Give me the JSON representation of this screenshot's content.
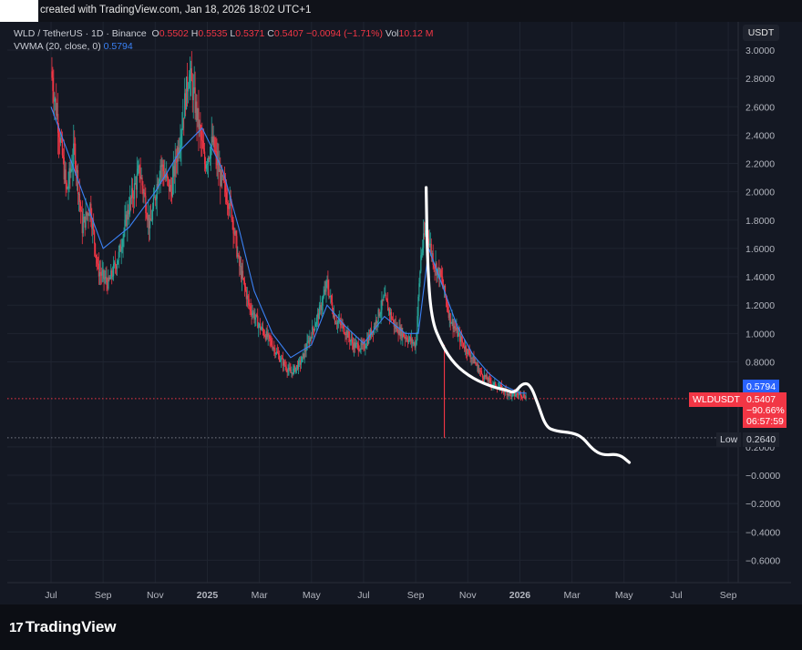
{
  "header": {
    "caption": "created with TradingView.com, Jan 18, 2026 18:02 UTC+1"
  },
  "legend": {
    "symbol": "WLD / TetherUS · 1D · Binance",
    "open_label": "O",
    "open": "0.5502",
    "high_label": "H",
    "high": "0.5535",
    "low_label": "L",
    "low": "0.5371",
    "close_label": "C",
    "close": "0.5407",
    "change": "−0.0094 (−1.71%)",
    "vol_label": "Vol",
    "vol": "10.12 M",
    "indicator": "VWMA (20, close, 0)",
    "indicator_value": "0.5794"
  },
  "currency_button": "USDT",
  "price_tags": {
    "vwma": "0.5794",
    "symbol_tag": "WLDUSDT",
    "last_price": "0.5407",
    "change_pct": "−90.66%",
    "countdown": "06:57:59",
    "low_label": "Low",
    "low_value": "0.2640"
  },
  "brand": "TradingView",
  "colors": {
    "background": "#141823",
    "bull": "#26a69a",
    "bear": "#f23645",
    "vwma": "#3b82f6",
    "projection": "#ffffff",
    "grid": "#1f2430"
  },
  "chart_data": {
    "type": "candlestick",
    "y_axis": {
      "ticks": [
        "3.0000",
        "2.8000",
        "2.6000",
        "2.4000",
        "2.2000",
        "2.0000",
        "1.8000",
        "1.6000",
        "1.4000",
        "1.2000",
        "1.0000",
        "0.8000",
        "0.2000",
        "−0.0000",
        "−0.2000",
        "−0.4000",
        "−0.6000"
      ],
      "tick_values": [
        3.0,
        2.8,
        2.6,
        2.4,
        2.2,
        2.0,
        1.8,
        1.6,
        1.4,
        1.2,
        1.0,
        0.8,
        0.2,
        0.0,
        -0.2,
        -0.4,
        -0.6
      ],
      "range": [
        -0.7,
        3.1
      ]
    },
    "x_axis": {
      "labels": [
        "Jul",
        "Sep",
        "Nov",
        "2025",
        "Mar",
        "May",
        "Jul",
        "Sep",
        "Nov",
        "2026",
        "Mar",
        "May",
        "Jul",
        "Sep"
      ],
      "positions_months": [
        0,
        2,
        4,
        6,
        8,
        10,
        12,
        14,
        16,
        18,
        20,
        22,
        24,
        26
      ]
    },
    "price_path": [
      {
        "m": 0.0,
        "p": 2.85
      },
      {
        "m": 0.3,
        "p": 2.45
      },
      {
        "m": 0.6,
        "p": 2.0
      },
      {
        "m": 0.9,
        "p": 2.3
      },
      {
        "m": 1.2,
        "p": 1.75
      },
      {
        "m": 1.5,
        "p": 1.9
      },
      {
        "m": 1.8,
        "p": 1.45
      },
      {
        "m": 2.2,
        "p": 1.35
      },
      {
        "m": 2.6,
        "p": 1.55
      },
      {
        "m": 3.0,
        "p": 1.9
      },
      {
        "m": 3.4,
        "p": 2.15
      },
      {
        "m": 3.8,
        "p": 1.75
      },
      {
        "m": 4.2,
        "p": 2.2
      },
      {
        "m": 4.6,
        "p": 2.0
      },
      {
        "m": 5.0,
        "p": 2.45
      },
      {
        "m": 5.3,
        "p": 2.85
      },
      {
        "m": 5.6,
        "p": 2.55
      },
      {
        "m": 5.9,
        "p": 2.2
      },
      {
        "m": 6.2,
        "p": 2.35
      },
      {
        "m": 6.5,
        "p": 2.1
      },
      {
        "m": 6.9,
        "p": 1.9
      },
      {
        "m": 7.2,
        "p": 1.5
      },
      {
        "m": 7.6,
        "p": 1.2
      },
      {
        "m": 8.0,
        "p": 1.05
      },
      {
        "m": 8.4,
        "p": 0.95
      },
      {
        "m": 8.8,
        "p": 0.82
      },
      {
        "m": 9.2,
        "p": 0.72
      },
      {
        "m": 9.6,
        "p": 0.8
      },
      {
        "m": 10.0,
        "p": 1.0
      },
      {
        "m": 10.3,
        "p": 1.15
      },
      {
        "m": 10.6,
        "p": 1.35
      },
      {
        "m": 10.9,
        "p": 1.1
      },
      {
        "m": 11.2,
        "p": 1.05
      },
      {
        "m": 11.6,
        "p": 0.92
      },
      {
        "m": 12.0,
        "p": 0.9
      },
      {
        "m": 12.4,
        "p": 1.05
      },
      {
        "m": 12.8,
        "p": 1.25
      },
      {
        "m": 13.2,
        "p": 1.05
      },
      {
        "m": 13.6,
        "p": 0.98
      },
      {
        "m": 14.0,
        "p": 0.92
      },
      {
        "m": 14.2,
        "p": 1.55
      },
      {
        "m": 14.4,
        "p": 1.75
      },
      {
        "m": 14.7,
        "p": 1.5
      },
      {
        "m": 15.0,
        "p": 1.38
      },
      {
        "m": 15.3,
        "p": 1.12
      },
      {
        "m": 15.6,
        "p": 1.0
      },
      {
        "m": 15.9,
        "p": 0.9
      },
      {
        "m": 16.2,
        "p": 0.82
      },
      {
        "m": 16.5,
        "p": 0.72
      },
      {
        "m": 16.9,
        "p": 0.65
      },
      {
        "m": 17.3,
        "p": 0.61
      },
      {
        "m": 17.7,
        "p": 0.56
      },
      {
        "m": 18.0,
        "p": 0.58
      },
      {
        "m": 18.25,
        "p": 0.55
      }
    ],
    "vwma_path": [
      {
        "m": 0.0,
        "p": 2.6
      },
      {
        "m": 1.0,
        "p": 2.1
      },
      {
        "m": 2.0,
        "p": 1.6
      },
      {
        "m": 3.0,
        "p": 1.75
      },
      {
        "m": 4.0,
        "p": 2.0
      },
      {
        "m": 5.0,
        "p": 2.3
      },
      {
        "m": 5.8,
        "p": 2.45
      },
      {
        "m": 6.6,
        "p": 2.15
      },
      {
        "m": 7.2,
        "p": 1.75
      },
      {
        "m": 7.8,
        "p": 1.3
      },
      {
        "m": 8.5,
        "p": 1.0
      },
      {
        "m": 9.2,
        "p": 0.83
      },
      {
        "m": 10.0,
        "p": 0.92
      },
      {
        "m": 10.6,
        "p": 1.2
      },
      {
        "m": 11.3,
        "p": 1.05
      },
      {
        "m": 12.0,
        "p": 0.93
      },
      {
        "m": 12.8,
        "p": 1.12
      },
      {
        "m": 13.6,
        "p": 1.0
      },
      {
        "m": 14.1,
        "p": 1.0
      },
      {
        "m": 14.5,
        "p": 1.6
      },
      {
        "m": 15.0,
        "p": 1.35
      },
      {
        "m": 15.6,
        "p": 1.05
      },
      {
        "m": 16.2,
        "p": 0.85
      },
      {
        "m": 16.8,
        "p": 0.72
      },
      {
        "m": 17.4,
        "p": 0.63
      },
      {
        "m": 18.0,
        "p": 0.58
      },
      {
        "m": 18.25,
        "p": 0.5794
      }
    ],
    "projection_path": [
      {
        "m": 14.4,
        "p": 2.03
      },
      {
        "m": 14.45,
        "p": 1.5
      },
      {
        "m": 14.6,
        "p": 1.1
      },
      {
        "m": 15.0,
        "p": 0.92
      },
      {
        "m": 15.5,
        "p": 0.78
      },
      {
        "m": 16.2,
        "p": 0.68
      },
      {
        "m": 17.0,
        "p": 0.62
      },
      {
        "m": 17.5,
        "p": 0.6
      },
      {
        "m": 17.8,
        "p": 0.58
      },
      {
        "m": 18.1,
        "p": 0.65
      },
      {
        "m": 18.4,
        "p": 0.64
      },
      {
        "m": 18.7,
        "p": 0.5
      },
      {
        "m": 19.0,
        "p": 0.34
      },
      {
        "m": 19.4,
        "p": 0.31
      },
      {
        "m": 20.0,
        "p": 0.3
      },
      {
        "m": 20.4,
        "p": 0.27
      },
      {
        "m": 20.8,
        "p": 0.18
      },
      {
        "m": 21.2,
        "p": 0.14
      },
      {
        "m": 21.8,
        "p": 0.15
      },
      {
        "m": 22.2,
        "p": 0.09
      }
    ],
    "last_price": 0.5407,
    "vwma_last": 0.5794,
    "low": 0.264,
    "low_month": 15.1,
    "grid": true
  }
}
